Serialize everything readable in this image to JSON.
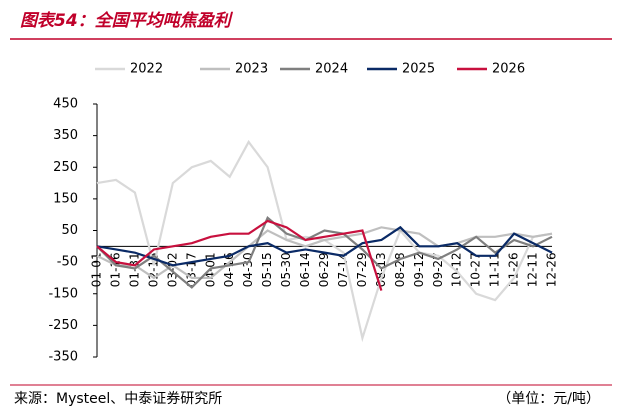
{
  "chart_data": {
    "type": "line",
    "title": "图表54：全国平均吨焦盈利",
    "source": "来源：Mysteel、中泰证券研究所",
    "unit": "（单位：元/吨）",
    "categories": [
      "01-01",
      "01-16",
      "01-31",
      "02-15",
      "03-02",
      "03-17",
      "04-01",
      "04-16",
      "04-30",
      "05-15",
      "05-30",
      "06-14",
      "06-29",
      "07-14",
      "07-29",
      "08-13",
      "08-28",
      "09-12",
      "09-27",
      "10-12",
      "10-27",
      "11-11",
      "11-26",
      "12-11",
      "12-26"
    ],
    "series": [
      {
        "name": "2022",
        "color": "#d9d9d9",
        "values": [
          200,
          210,
          170,
          -60,
          200,
          250,
          270,
          220,
          330,
          250,
          20,
          30,
          20,
          -20,
          -290,
          -100,
          50,
          -20,
          -30,
          -80,
          -150,
          -170,
          -100,
          30,
          40
        ]
      },
      {
        "name": "2023",
        "color": "#bfbfbf",
        "values": [
          -30,
          -60,
          -60,
          -100,
          -60,
          -100,
          -100,
          -50,
          0,
          50,
          20,
          0,
          20,
          30,
          40,
          60,
          50,
          40,
          0,
          10,
          30,
          30,
          40,
          30,
          40
        ]
      },
      {
        "name": "2024",
        "color": "#7f7f7f",
        "values": [
          0,
          -60,
          -70,
          -30,
          -80,
          -130,
          -70,
          -60,
          -50,
          90,
          40,
          20,
          50,
          40,
          -10,
          -70,
          -40,
          -20,
          -40,
          -10,
          30,
          -20,
          20,
          0,
          30
        ]
      },
      {
        "name": "2025",
        "color": "#0a2a66",
        "values": [
          0,
          -10,
          -20,
          -40,
          -60,
          -50,
          -40,
          -30,
          0,
          10,
          -20,
          -10,
          -20,
          -30,
          10,
          20,
          60,
          0,
          0,
          10,
          -30,
          -30,
          40,
          10,
          -20
        ]
      },
      {
        "name": "2026",
        "color": "#c8103e",
        "values": [
          0,
          -50,
          -60,
          -10,
          0,
          10,
          30,
          40,
          40,
          80,
          60,
          20,
          30,
          40,
          50,
          -140,
          null,
          null,
          null,
          null,
          null,
          null,
          null,
          null,
          null
        ]
      }
    ],
    "ylim": [
      -350,
      450
    ],
    "yticks": [
      -350,
      -250,
      -150,
      -50,
      50,
      150,
      250,
      350,
      450
    ]
  }
}
